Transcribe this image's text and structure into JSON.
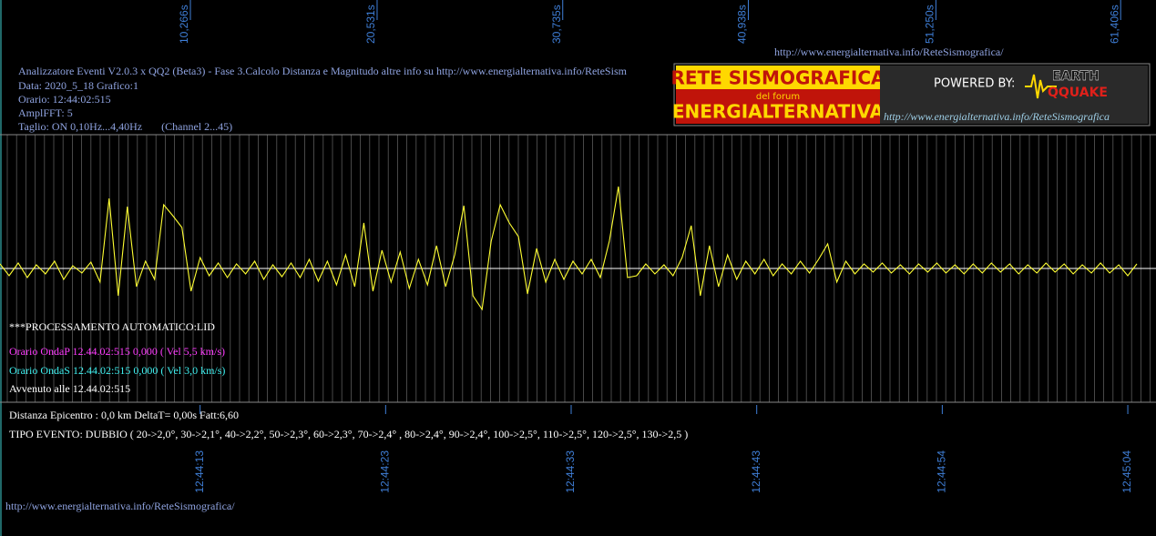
{
  "header": {
    "lines": [
      "Analizzatore Eventi V2.0.3 x QQ2 (Beta3) - Fase 3.Calcolo Distanza e Magnitudo altre info su http://www.energialternativa.info/ReteSism",
      "Data: 2020_5_18 Grafico:1",
      "Orario: 12:44:02:515",
      "AmplFFT: 5",
      "Taglio: ON 0,10Hz...4,40Hz       (Channel 2...45)"
    ],
    "top_url": "http://www.energialternativa.info/ReteSismografica/"
  },
  "logo": {
    "title": "RETE SISMOGRAFICA",
    "subtitle": "del forum",
    "name": "ENERGIALTERNATIVA",
    "powered": "POWERED BY:",
    "brand1": "EARTH",
    "brand2": "QQUAKE",
    "url": "http://www.energialternativa.info/ReteSismografica"
  },
  "info": {
    "processing": "***PROCESSAMENTO AUTOMATICO:LID",
    "onda_p": "Orario OndaP 12.44.02:515  0,000 ( Vel 5,5 km/s)",
    "onda_s": "Orario OndaS 12.44.02:515  0,000 ( Vel 3,0 km/s)",
    "avvenuto": "Avvenuto alle 12.44.02:515",
    "distanza": "Distanza Epicentro : 0,0 km DeltaT= 0,00s  Fatt:6,60",
    "tipo": "TIPO EVENTO: DUBBIO ( 20->2,0°, 30->2,1°, 40->2,2°, 50->2,3°, 60->2,3°, 70->2,4° , 80->2,4°, 90->2,4°, 100->2,5°, 110->2,5°, 120->2,5°, 130->2,5 )"
  },
  "footer_url": "http://www.energialternativa.info/ReteSismografica/",
  "chart_data": {
    "type": "line",
    "color": "#ffff33",
    "xlim": [
      0,
      63.55
    ],
    "ylim": [
      -147,
      147
    ],
    "xticks": [
      {
        "value": 10.266,
        "label": "10,266s"
      },
      {
        "value": 20.531,
        "label": "20,531s"
      },
      {
        "value": 30.735,
        "label": "30,735s"
      },
      {
        "value": 40.938,
        "label": "40,938s"
      },
      {
        "value": 51.25,
        "label": "51,250s"
      },
      {
        "value": 61.406,
        "label": "61,406s"
      }
    ],
    "time_ticks": [
      {
        "value": 11.0,
        "label": "12:44:13"
      },
      {
        "value": 21.2,
        "label": "12:44:23"
      },
      {
        "value": 31.4,
        "label": "12:44:33"
      },
      {
        "value": 41.6,
        "label": "12:44:43"
      },
      {
        "value": 51.8,
        "label": "12:44:54"
      },
      {
        "value": 62.0,
        "label": "12:45:04"
      }
    ],
    "x": [
      0,
      0.5,
      1,
      1.5,
      2,
      2.5,
      3,
      3.5,
      4,
      4.5,
      5,
      5.5,
      6,
      6.5,
      7,
      7.5,
      8,
      8.5,
      9,
      9.5,
      10,
      10.5,
      11,
      11.5,
      12,
      12.5,
      13,
      13.5,
      14,
      14.5,
      15,
      15.5,
      16,
      16.5,
      17,
      17.5,
      18,
      18.5,
      19,
      19.5,
      20,
      20.5,
      21,
      21.5,
      22,
      22.5,
      23,
      23.5,
      24,
      24.5,
      25,
      25.5,
      26,
      26.5,
      27,
      27.5,
      28,
      28.5,
      29,
      29.5,
      30,
      30.5,
      31,
      31.5,
      32,
      32.5,
      33,
      33.5,
      34,
      34.5,
      35,
      35.5,
      36,
      36.5,
      37,
      37.5,
      38,
      38.5,
      39,
      39.5,
      40,
      40.5,
      41,
      41.5,
      42,
      42.5,
      43,
      43.5,
      44,
      44.5,
      45,
      45.5,
      46,
      46.5,
      47,
      47.5,
      48,
      48.5,
      49,
      49.5,
      50,
      50.5,
      51,
      51.5,
      52,
      52.5,
      53,
      53.5,
      54,
      54.5,
      55,
      55.5,
      56,
      56.5,
      57,
      57.5,
      58,
      58.5,
      59,
      59.5,
      60,
      60.5,
      61,
      61.5,
      62,
      62.5
    ],
    "values": [
      5,
      -8,
      6,
      -10,
      4,
      -6,
      8,
      -12,
      3,
      -5,
      7,
      -15,
      77,
      -30,
      68,
      -20,
      8,
      -12,
      70,
      58,
      45,
      -25,
      12,
      -8,
      6,
      -10,
      5,
      -6,
      8,
      -12,
      4,
      -9,
      6,
      -10,
      10,
      -14,
      8,
      -18,
      15,
      -20,
      50,
      -25,
      20,
      -15,
      18,
      -22,
      10,
      -18,
      25,
      -20,
      15,
      69,
      -30,
      -45,
      30,
      70,
      50,
      35,
      -28,
      22,
      -15,
      10,
      -12,
      8,
      -6,
      10,
      -10,
      30,
      90,
      -10,
      -8,
      5,
      -6,
      4,
      -8,
      12,
      47,
      -30,
      25,
      -20,
      15,
      -12,
      8,
      -6,
      10,
      -8,
      5,
      -6,
      8,
      -5,
      10,
      27,
      -15,
      8,
      -6,
      5,
      -4,
      6,
      -5,
      4,
      -6,
      5,
      -4,
      6,
      -5,
      4,
      -6,
      5,
      -5,
      6,
      -4,
      5,
      -6,
      4,
      -5,
      6,
      -4,
      5,
      -6,
      4,
      -5,
      6,
      -5,
      4,
      -8,
      5
    ]
  }
}
